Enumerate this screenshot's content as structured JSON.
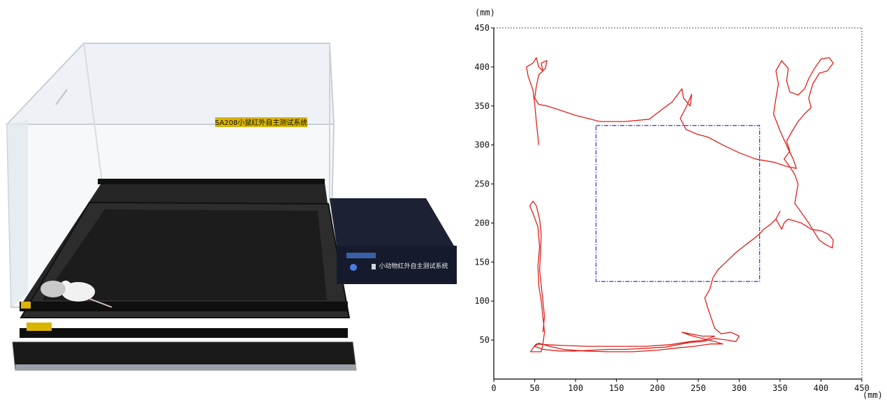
{
  "photo": {
    "lid_label": "SA208小鼠红外自主测试系统",
    "controller_label": "小动物红外自主测试系统",
    "colors": {
      "acrylic_edge": "#c9ced6",
      "base": "#1a1a1a",
      "label_gold": "#d9b400",
      "controller": "#151b2c"
    }
  },
  "chart_data": {
    "type": "line",
    "x_unit": "(mm)",
    "y_unit": "(mm)",
    "xlim": [
      0,
      450
    ],
    "ylim": [
      0,
      450
    ],
    "x_ticks": [
      "0",
      "50",
      "100",
      "150",
      "200",
      "250",
      "300",
      "350",
      "400",
      "450"
    ],
    "y_ticks": [
      "50",
      "100",
      "150",
      "200",
      "250",
      "300",
      "350",
      "400",
      "450"
    ],
    "center_zone": {
      "x0": 125,
      "y0": 125,
      "x1": 325,
      "y1": 325,
      "color": "#3333cc"
    },
    "trajectory_color": "#e0201a",
    "trajectory": [
      [
        55,
        300
      ],
      [
        52,
        330
      ],
      [
        50,
        352
      ],
      [
        48,
        370
      ],
      [
        42,
        388
      ],
      [
        40,
        400
      ],
      [
        48,
        405
      ],
      [
        52,
        412
      ],
      [
        55,
        400
      ],
      [
        60,
        395
      ],
      [
        58,
        405
      ],
      [
        65,
        408
      ],
      [
        63,
        398
      ],
      [
        55,
        390
      ],
      [
        52,
        375
      ],
      [
        50,
        360
      ],
      [
        55,
        352
      ],
      [
        65,
        350
      ],
      [
        80,
        345
      ],
      [
        100,
        338
      ],
      [
        130,
        330
      ],
      [
        160,
        330
      ],
      [
        190,
        333
      ],
      [
        205,
        345
      ],
      [
        218,
        355
      ],
      [
        230,
        372
      ],
      [
        232,
        360
      ],
      [
        240,
        350
      ],
      [
        242,
        365
      ],
      [
        235,
        348
      ],
      [
        228,
        334
      ],
      [
        235,
        320
      ],
      [
        248,
        314
      ],
      [
        262,
        310
      ],
      [
        280,
        300
      ],
      [
        300,
        290
      ],
      [
        320,
        282
      ],
      [
        342,
        278
      ],
      [
        360,
        272
      ],
      [
        370,
        270
      ],
      [
        366,
        282
      ],
      [
        360,
        295
      ],
      [
        350,
        318
      ],
      [
        342,
        340
      ],
      [
        345,
        360
      ],
      [
        348,
        378
      ],
      [
        345,
        395
      ],
      [
        352,
        408
      ],
      [
        360,
        398
      ],
      [
        358,
        382
      ],
      [
        362,
        368
      ],
      [
        372,
        364
      ],
      [
        380,
        372
      ],
      [
        385,
        385
      ],
      [
        392,
        398
      ],
      [
        400,
        410
      ],
      [
        410,
        412
      ],
      [
        415,
        405
      ],
      [
        408,
        395
      ],
      [
        398,
        392
      ],
      [
        390,
        378
      ],
      [
        385,
        360
      ],
      [
        388,
        348
      ],
      [
        380,
        340
      ],
      [
        372,
        330
      ],
      [
        365,
        318
      ],
      [
        358,
        305
      ],
      [
        362,
        292
      ],
      [
        355,
        282
      ],
      [
        362,
        272
      ],
      [
        368,
        262
      ],
      [
        372,
        250
      ],
      [
        370,
        238
      ],
      [
        368,
        225
      ],
      [
        375,
        215
      ],
      [
        385,
        200
      ],
      [
        392,
        188
      ],
      [
        398,
        178
      ],
      [
        406,
        172
      ],
      [
        414,
        168
      ],
      [
        415,
        178
      ],
      [
        410,
        185
      ],
      [
        400,
        190
      ],
      [
        388,
        192
      ],
      [
        376,
        200
      ],
      [
        360,
        205
      ],
      [
        355,
        200
      ],
      [
        352,
        192
      ],
      [
        345,
        205
      ],
      [
        350,
        215
      ],
      [
        345,
        205
      ],
      [
        338,
        198
      ],
      [
        330,
        192
      ],
      [
        325,
        186
      ],
      [
        318,
        180
      ],
      [
        308,
        172
      ],
      [
        296,
        162
      ],
      [
        284,
        150
      ],
      [
        274,
        140
      ],
      [
        268,
        130
      ],
      [
        264,
        115
      ],
      [
        258,
        104
      ],
      [
        262,
        90
      ],
      [
        266,
        78
      ],
      [
        270,
        65
      ],
      [
        278,
        58
      ],
      [
        290,
        60
      ],
      [
        300,
        55
      ],
      [
        296,
        48
      ],
      [
        285,
        50
      ],
      [
        270,
        52
      ],
      [
        255,
        48
      ],
      [
        240,
        47
      ],
      [
        225,
        44
      ],
      [
        210,
        41
      ],
      [
        195,
        40
      ],
      [
        180,
        39
      ],
      [
        160,
        38
      ],
      [
        140,
        38
      ],
      [
        120,
        37
      ],
      [
        100,
        36
      ],
      [
        80,
        36
      ],
      [
        60,
        38
      ],
      [
        50,
        42
      ],
      [
        55,
        46
      ],
      [
        68,
        42
      ],
      [
        85,
        38
      ],
      [
        110,
        36
      ],
      [
        140,
        35
      ],
      [
        170,
        35
      ],
      [
        200,
        37
      ],
      [
        225,
        40
      ],
      [
        245,
        42
      ],
      [
        265,
        45
      ],
      [
        280,
        45
      ],
      [
        270,
        48
      ],
      [
        255,
        52
      ],
      [
        240,
        56
      ],
      [
        230,
        60
      ],
      [
        240,
        58
      ],
      [
        255,
        55
      ],
      [
        270,
        55
      ],
      [
        258,
        50
      ],
      [
        240,
        48
      ],
      [
        215,
        44
      ],
      [
        185,
        42
      ],
      [
        150,
        42
      ],
      [
        115,
        42
      ],
      [
        85,
        43
      ],
      [
        65,
        44
      ],
      [
        52,
        45
      ],
      [
        48,
        40
      ],
      [
        45,
        35
      ],
      [
        50,
        35
      ],
      [
        58,
        35
      ],
      [
        60,
        45
      ],
      [
        62,
        60
      ],
      [
        60,
        80
      ],
      [
        58,
        100
      ],
      [
        55,
        120
      ],
      [
        54,
        145
      ],
      [
        56,
        170
      ],
      [
        54,
        195
      ],
      [
        48,
        212
      ],
      [
        44,
        222
      ],
      [
        48,
        228
      ],
      [
        52,
        222
      ],
      [
        56,
        205
      ],
      [
        58,
        185
      ],
      [
        57,
        160
      ],
      [
        56,
        140
      ],
      [
        58,
        120
      ],
      [
        60,
        100
      ],
      [
        62,
        80
      ],
      [
        60,
        60
      ]
    ]
  }
}
